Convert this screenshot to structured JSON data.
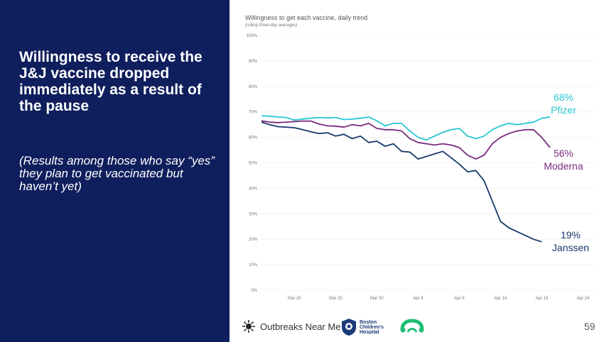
{
  "slide": {
    "headline": "Willingness to receive the J&J vaccine dropped immediately as a result of the pause",
    "subnote": "(Results among those who say “yes” they plan to get vaccinated but haven’t yet)",
    "page_number": "59"
  },
  "footer": {
    "outbreaks_label": "Outbreaks Near Me",
    "hospital_label": "Boston Children's Hospital"
  },
  "colors": {
    "panel": "#0f1e5c",
    "pfizer": "#27c6d3",
    "moderna": "#7a2a7c",
    "janssen": "#163a6b"
  },
  "chart_data": {
    "type": "line",
    "title": "Willingness to get each vaccine, daily trend",
    "subtitle": "(rolling three-day averages)",
    "x_start_date": "2021-03-16",
    "x_start_label": "Mar 16",
    "xlabel": "",
    "ylabel": "",
    "ylim": [
      0,
      100
    ],
    "yticks": [
      "0%",
      "10%",
      "20%",
      "30%",
      "40%",
      "50%",
      "60%",
      "70%",
      "80%",
      "90%",
      "100%"
    ],
    "xticks": [
      "Mar 20",
      "Mar 25",
      "Mar 30",
      "Apr 4",
      "Apr 9",
      "Apr 14",
      "Apr 19",
      "Apr 24"
    ],
    "series": [
      {
        "name": "Pfizer",
        "label_value": "68%",
        "values": [
          68.5,
          68.3,
          68.0,
          67.8,
          66.8,
          67.2,
          67.5,
          67.8,
          67.6,
          67.8,
          67.0,
          67.2,
          67.5,
          68.0,
          66.5,
          64.5,
          65.5,
          65.5,
          62.5,
          60.0,
          59.0,
          60.5,
          62.0,
          63.0,
          63.5,
          60.5,
          59.5,
          60.5,
          63.0,
          64.5,
          65.5,
          65.0,
          65.5,
          66.0,
          67.5,
          68.0
        ]
      },
      {
        "name": "Moderna",
        "label_value": "56%",
        "values": [
          66.5,
          66.0,
          65.8,
          66.0,
          66.2,
          66.4,
          66.4,
          65.2,
          64.5,
          64.4,
          64.0,
          65.0,
          64.5,
          65.5,
          63.5,
          63.0,
          63.0,
          62.5,
          59.5,
          58.0,
          57.5,
          57.0,
          57.5,
          57.0,
          56.0,
          53.0,
          51.5,
          53.0,
          57.5,
          60.0,
          61.5,
          62.5,
          63.0,
          63.0,
          60.0,
          56.0
        ]
      },
      {
        "name": "Janssen",
        "label_value": "19%",
        "values": [
          66.0,
          65.0,
          64.2,
          64.0,
          63.8,
          63.0,
          62.2,
          61.5,
          61.8,
          60.5,
          61.2,
          59.5,
          60.5,
          58.0,
          58.5,
          56.5,
          57.5,
          54.5,
          54.2,
          51.5,
          52.5,
          53.5,
          54.5,
          52.0,
          49.5,
          46.5,
          47.0,
          43.0,
          35.0,
          27.0,
          24.5,
          23.0,
          21.5,
          20.0,
          19.0,
          null
        ]
      }
    ]
  }
}
